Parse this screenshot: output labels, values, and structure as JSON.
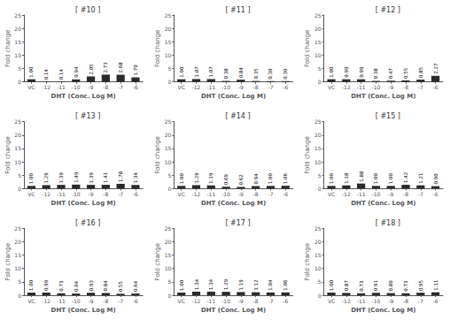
{
  "chart_data": [
    {
      "type": "bar",
      "title": "[ #10 ]",
      "categories": [
        "VC",
        "-12",
        "-11",
        "-10",
        "-9",
        "-8",
        "-7",
        "-6"
      ],
      "values": [
        1.0,
        0.14,
        0.14,
        0.94,
        2.05,
        2.73,
        2.68,
        1.7
      ],
      "value_labels": [
        "1.00",
        "0.14",
        "0.14",
        "0.94",
        "2.05",
        "2.73",
        "2.68",
        "1.70"
      ],
      "color": "#2a2a2a",
      "xlabel": "DHT (Conc. Log M)",
      "ylabel": "Fold change",
      "ylim": [
        0,
        25
      ],
      "yticks": [
        0,
        5,
        10,
        15,
        20,
        25
      ],
      "grid": false,
      "data_labels": true
    },
    {
      "type": "bar",
      "title": "[ #11 ]",
      "categories": [
        "VC",
        "-12",
        "-11",
        "-10",
        "-9",
        "-8",
        "-7",
        "-6"
      ],
      "values": [
        1.0,
        1.07,
        1.07,
        0.38,
        0.84,
        0.35,
        0.3,
        0.3
      ],
      "value_labels": [
        "1.00",
        "1.07",
        "1.07",
        "0.38",
        "0.84",
        "0.35",
        "0.30",
        "0.30"
      ],
      "color": "#2a2a2a",
      "xlabel": "DHT (Conc. Log M)",
      "ylabel": "Fold change",
      "ylim": [
        0,
        25
      ],
      "yticks": [
        0,
        5,
        10,
        15,
        20,
        25
      ],
      "grid": false,
      "data_labels": true
    },
    {
      "type": "bar",
      "title": "[ #12 ]",
      "categories": [
        "VC",
        "-12",
        "-11",
        "-10",
        "-9",
        "-8",
        "-7",
        "-6"
      ],
      "values": [
        1.0,
        0.99,
        0.99,
        0.38,
        0.47,
        0.55,
        0.85,
        2.27
      ],
      "value_labels": [
        "1.00",
        "0.99",
        "0.99",
        "0.38",
        "0.47",
        "0.55",
        "0.85",
        "2.27"
      ],
      "color": "#2a2a2a",
      "xlabel": "DHT (Conc. Log M)",
      "ylabel": "Fold change",
      "ylim": [
        0,
        25
      ],
      "yticks": [
        0,
        5,
        10,
        15,
        20,
        25
      ],
      "grid": false,
      "data_labels": true
    },
    {
      "type": "bar",
      "title": "[ #13 ]",
      "categories": [
        "VC",
        "-12",
        "-11",
        "-10",
        "-9",
        "-8",
        "-7",
        "-6"
      ],
      "values": [
        1.0,
        1.29,
        1.39,
        1.49,
        1.39,
        1.41,
        1.78,
        1.34
      ],
      "value_labels": [
        "1.00",
        "1.29",
        "1.39",
        "1.49",
        "1.39",
        "1.41",
        "1.78",
        "1.34"
      ],
      "color": "#2a2a2a",
      "xlabel": "DHT (Conc. Log M)",
      "ylabel": "Fold change",
      "ylim": [
        0,
        25
      ],
      "yticks": [
        0,
        5,
        10,
        15,
        20,
        25
      ],
      "grid": false,
      "data_labels": true
    },
    {
      "type": "bar",
      "title": "[ #14 ]",
      "categories": [
        "VC",
        "-12",
        "-11",
        "-10",
        "-9",
        "-8",
        "-7",
        "-6"
      ],
      "values": [
        1.0,
        1.29,
        1.19,
        0.69,
        0.62,
        0.94,
        1.0,
        1.06
      ],
      "value_labels": [
        "1.00",
        "1.29",
        "1.19",
        "0.69",
        "0.62",
        "0.94",
        "1.00",
        "1.06"
      ],
      "color": "#2a2a2a",
      "xlabel": "DHT (Conc. Log M)",
      "ylabel": "Fold change",
      "ylim": [
        0,
        25
      ],
      "yticks": [
        0,
        5,
        10,
        15,
        20,
        25
      ],
      "grid": false,
      "data_labels": true
    },
    {
      "type": "bar",
      "title": "[ #15 ]",
      "categories": [
        "VC",
        "-12",
        "-11",
        "-10",
        "-9",
        "-8",
        "-7",
        "-6"
      ],
      "values": [
        1.0,
        1.18,
        1.88,
        1.0,
        1.0,
        1.42,
        1.21,
        0.9
      ],
      "value_labels": [
        "1.00",
        "1.18",
        "1.88",
        "1.00",
        "1.00",
        "1.42",
        "1.21",
        "0.90"
      ],
      "color": "#2a2a2a",
      "xlabel": "DHT (Conc. Log M)",
      "ylabel": "Fold change",
      "ylim": [
        0,
        25
      ],
      "yticks": [
        0,
        5,
        10,
        15,
        20,
        25
      ],
      "grid": false,
      "data_labels": true
    },
    {
      "type": "bar",
      "title": "[ #16 ]",
      "categories": [
        "VC",
        "-12",
        "-11",
        "-10",
        "-9",
        "-8",
        "-7",
        "-6"
      ],
      "values": [
        1.0,
        0.99,
        0.73,
        0.64,
        0.93,
        0.84,
        0.55,
        0.64
      ],
      "value_labels": [
        "1.00",
        "0.99",
        "0.73",
        "0.64",
        "0.93",
        "0.84",
        "0.55",
        "0.64"
      ],
      "color": "#2a2a2a",
      "xlabel": "DHT (Conc. Log M)",
      "ylabel": "Fold change",
      "ylim": [
        0,
        25
      ],
      "yticks": [
        0,
        5,
        10,
        15,
        20,
        25
      ],
      "grid": false,
      "data_labels": true
    },
    {
      "type": "bar",
      "title": "[ #17 ]",
      "categories": [
        "VC",
        "-12",
        "-11",
        "-10",
        "-9",
        "-8",
        "-7",
        "-6"
      ],
      "values": [
        1.0,
        1.34,
        1.34,
        1.29,
        1.19,
        1.12,
        1.04,
        1.06
      ],
      "value_labels": [
        "1.00",
        "1.34",
        "1.34",
        "1.29",
        "1.19",
        "1.12",
        "1.04",
        "1.06"
      ],
      "color": "#2a2a2a",
      "xlabel": "DHT (Conc. Log M)",
      "ylabel": "Fold change",
      "ylim": [
        0,
        25
      ],
      "yticks": [
        0,
        5,
        10,
        15,
        20,
        25
      ],
      "grid": false,
      "data_labels": true
    },
    {
      "type": "bar",
      "title": "[ #18 ]",
      "categories": [
        "VC",
        "-12",
        "-11",
        "-10",
        "-9",
        "-8",
        "-7",
        "-6"
      ],
      "values": [
        1.0,
        0.87,
        0.73,
        0.91,
        0.8,
        0.73,
        0.95,
        1.11
      ],
      "value_labels": [
        "1.00",
        "0.87",
        "0.73",
        "0.91",
        "0.80",
        "0.73",
        "0.95",
        "1.11"
      ],
      "color": "#2a2a2a",
      "xlabel": "DHT (Conc. Log M)",
      "ylabel": "Fold change",
      "ylim": [
        0,
        25
      ],
      "yticks": [
        0,
        5,
        10,
        15,
        20,
        25
      ],
      "grid": false,
      "data_labels": true
    }
  ]
}
